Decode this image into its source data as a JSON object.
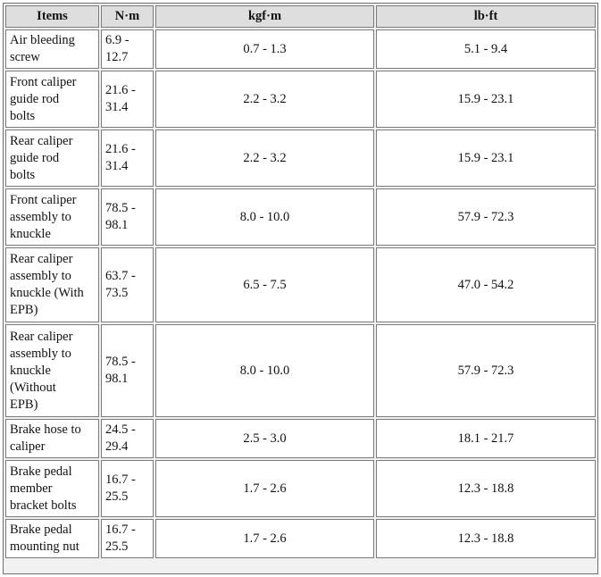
{
  "table": {
    "headers": {
      "items": "Items",
      "nm": "N·m",
      "kgfm": "kgf·m",
      "lbft": "lb·ft"
    },
    "rows": [
      {
        "item": "Air bleeding\nscrew",
        "nm": "6.9 -\n12.7",
        "kgfm": "0.7 - 1.3",
        "lbft": "5.1 - 9.4"
      },
      {
        "item": "Front caliper\nguide rod\nbolts",
        "nm": "21.6 -\n31.4",
        "kgfm": "2.2 - 3.2",
        "lbft": "15.9 - 23.1"
      },
      {
        "item": "Rear caliper\nguide rod\nbolts",
        "nm": "21.6 -\n31.4",
        "kgfm": "2.2 - 3.2",
        "lbft": "15.9 - 23.1"
      },
      {
        "item": "Front caliper\nassembly to\nknuckle",
        "nm": "78.5 -\n98.1",
        "kgfm": "8.0 - 10.0",
        "lbft": "57.9 - 72.3"
      },
      {
        "item": "Rear caliper\nassembly to\nknuckle (With\nEPB)",
        "nm": "63.7 -\n73.5",
        "kgfm": "6.5 - 7.5",
        "lbft": "47.0 - 54.2"
      },
      {
        "item": "Rear caliper\nassembly to\nknuckle\n(Without\nEPB)",
        "nm": "78.5 -\n98.1",
        "kgfm": "8.0 - 10.0",
        "lbft": "57.9 - 72.3"
      },
      {
        "item": "Brake hose to\ncaliper",
        "nm": "24.5 -\n29.4",
        "kgfm": "2.5 - 3.0",
        "lbft": "18.1 - 21.7"
      },
      {
        "item": "Brake pedal\nmember\nbracket bolts",
        "nm": "16.7 -\n25.5",
        "kgfm": "1.7 - 2.6",
        "lbft": "12.3 - 18.8"
      },
      {
        "item": "Brake pedal\nmounting nut",
        "nm": "16.7 -\n25.5",
        "kgfm": "1.7 - 2.6",
        "lbft": "12.3 - 18.8"
      }
    ]
  }
}
